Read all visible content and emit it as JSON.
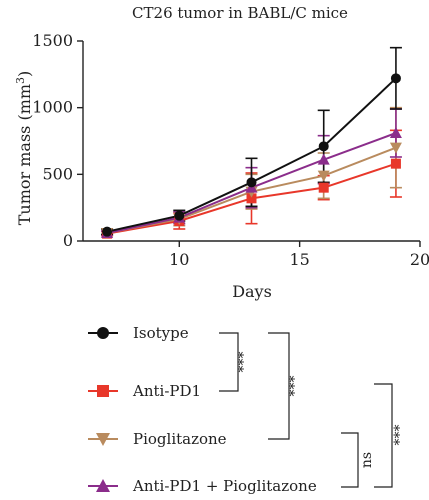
{
  "chart_data": {
    "type": "line",
    "title": "CT26 tumor in BABL/C mice",
    "xlabel": "Days",
    "ylabel_main": "Tumor mass (mm",
    "ylabel_sup": "3",
    "ylabel_close": ")",
    "xlim": [
      6,
      20
    ],
    "ylim": [
      0,
      1500
    ],
    "xticks": [
      "10",
      "15",
      "20"
    ],
    "yticks": [
      "0",
      "500",
      "1000",
      "1500"
    ],
    "xtick_values": [
      10,
      15,
      20
    ],
    "ytick_values": [
      0,
      500,
      1000,
      1500
    ],
    "x": [
      7,
      10,
      13,
      16,
      19
    ],
    "series": [
      {
        "name": "Isotype",
        "color": "#111111",
        "marker": "circle",
        "values": [
          70,
          190,
          440,
          710,
          1220
        ],
        "errors": [
          20,
          40,
          180,
          270,
          230
        ]
      },
      {
        "name": "Anti-PD1",
        "color": "#e8372a",
        "marker": "square",
        "values": [
          55,
          150,
          320,
          400,
          580
        ],
        "errors": [
          15,
          60,
          190,
          90,
          250
        ]
      },
      {
        "name": "Pioglitazone",
        "color": "#b98b5e",
        "marker": "triangle-down",
        "values": [
          60,
          165,
          370,
          490,
          700
        ],
        "errors": [
          15,
          50,
          130,
          170,
          300
        ]
      },
      {
        "name": "Anti-PD1 + Pioglitazone",
        "color": "#8b2d8b",
        "marker": "triangle-up",
        "values": [
          60,
          175,
          400,
          610,
          810
        ],
        "errors": [
          15,
          45,
          150,
          180,
          180
        ]
      }
    ],
    "significance": [
      "***",
      "***",
      "ns",
      "***"
    ],
    "grid": false,
    "legend_position": "bottom"
  }
}
